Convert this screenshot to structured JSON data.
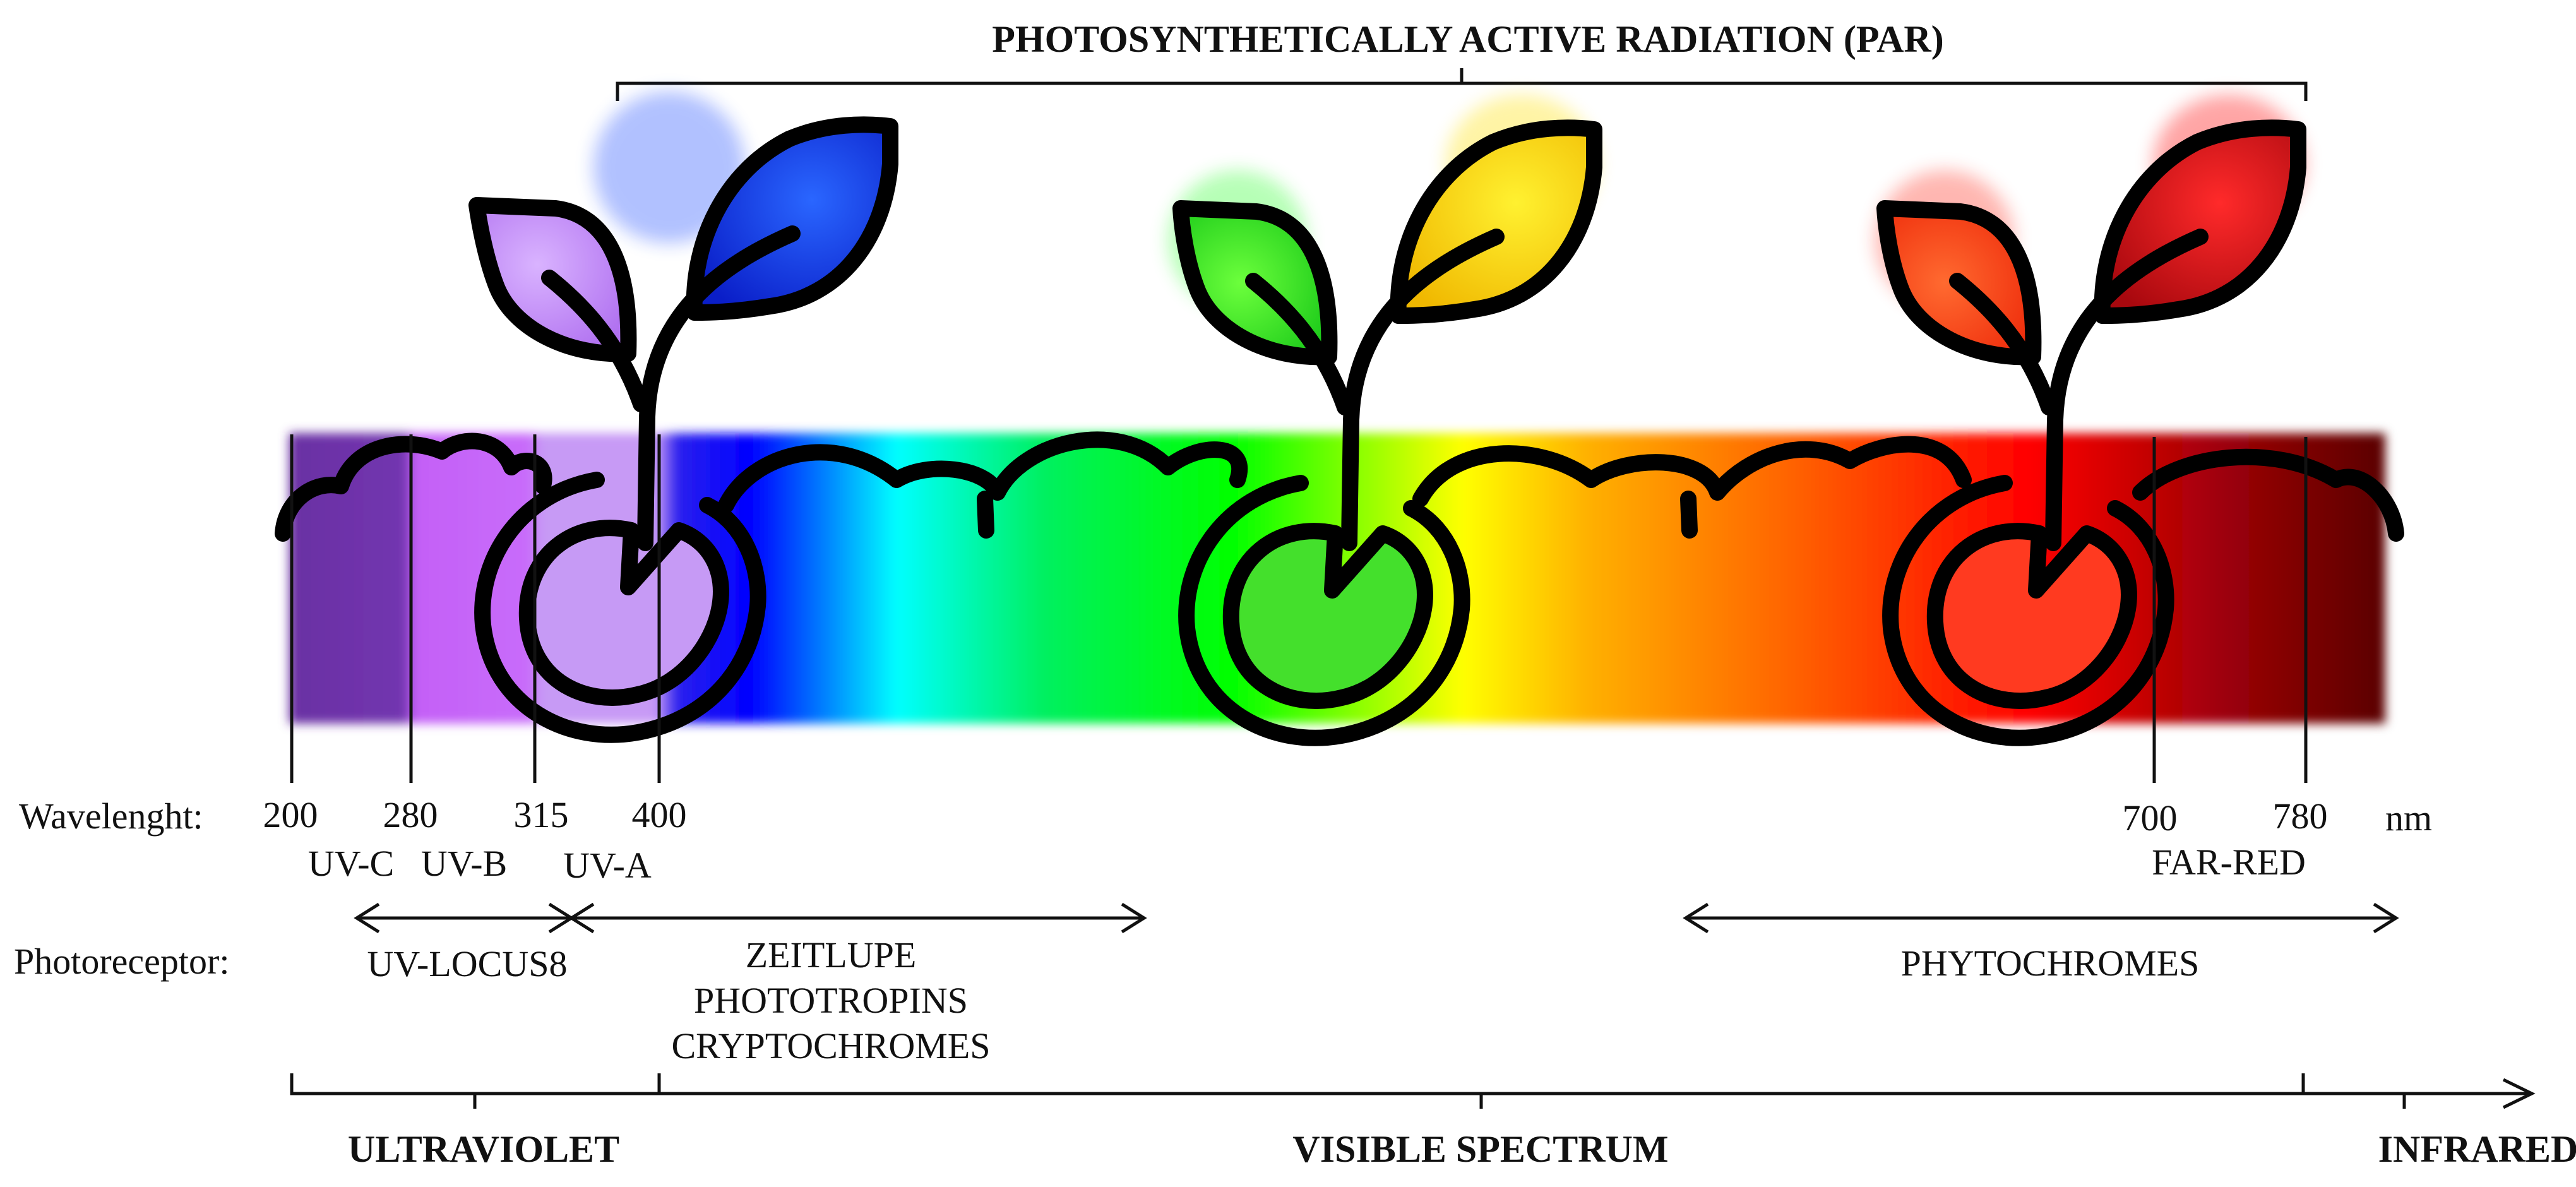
{
  "title": "PHOTOSYNTHETICALLY ACTIVE RADIATION (PAR)",
  "wavelength": {
    "row_label": "Wavelenght:",
    "unit": "nm",
    "ticks": [
      {
        "value": 200,
        "label": "200"
      },
      {
        "value": 280,
        "label": "280"
      },
      {
        "value": 315,
        "label": "315"
      },
      {
        "value": 400,
        "label": "400"
      },
      {
        "value": 700,
        "label": "700"
      },
      {
        "value": 780,
        "label": "780"
      }
    ],
    "bands": {
      "uvc": "UV-C",
      "uvb": "UV-B",
      "uva": "UV-A",
      "far_red": "FAR-RED"
    }
  },
  "photoreceptor": {
    "row_label": "Photoreceptor:",
    "uv_locus8": "UV-LOCUS8",
    "blue_group": [
      "ZEITLUPE",
      "PHOTOTROPINS",
      "CRYPTOCHROMES"
    ],
    "phytochromes": "PHYTOCHROMES"
  },
  "regions": {
    "ultraviolet": "ULTRAVIOLET",
    "visible": "VISIBLE SPECTRUM",
    "infrared": "INFRARED"
  },
  "plants": [
    {
      "name": "uv-blue-seedling",
      "leaf_left": "#b98cf2",
      "leaf_right": "#1f54e6",
      "seed": "#c69af5"
    },
    {
      "name": "green-yellow-seedling",
      "leaf_left": "#35e52a",
      "leaf_right": "#f3d20a",
      "seed": "#44e02c"
    },
    {
      "name": "red-seedling",
      "leaf_left": "#ff4a22",
      "leaf_right": "#d2121a",
      "seed": "#ff3a20"
    }
  ],
  "colors": {
    "uv_purple": "#7030a0",
    "violet": "#cc66ff",
    "blue": "#0000ff",
    "cyan": "#00ffff",
    "green": "#00ff00",
    "yellow": "#ffff00",
    "orange": "#ff8000",
    "red": "#ff0000",
    "far_red": "#a00000",
    "infrared": "#5a0000"
  }
}
